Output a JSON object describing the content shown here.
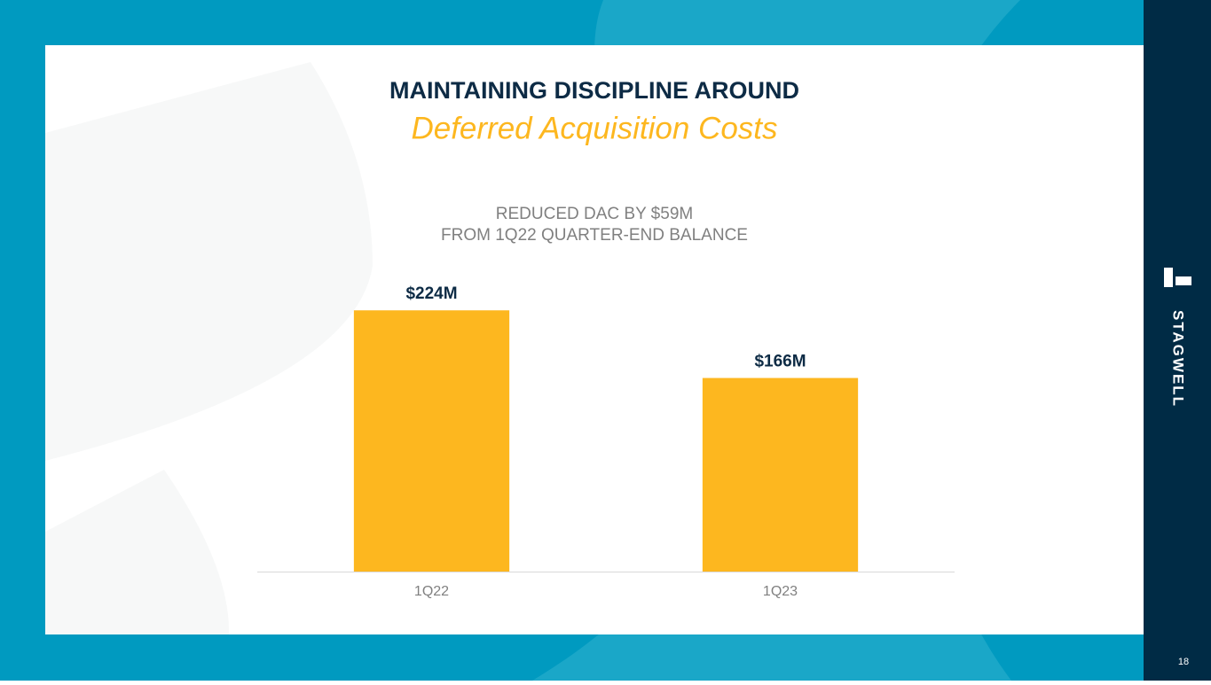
{
  "slide": {
    "heading": "MAINTAINING DISCIPLINE AROUND",
    "logo": "STAGWELL",
    "page_number": "18"
  },
  "chart_data": {
    "type": "bar",
    "title": "Deferred Acquisition  Costs",
    "subtitle": [
      "REDUCED DAC BY $59M",
      "FROM 1Q22 QUARTER-END BALANCE"
    ],
    "categories": [
      "1Q22",
      "1Q23"
    ],
    "values": [
      224,
      166
    ],
    "value_labels": [
      "$224M",
      "$166M"
    ],
    "color": "#fdb71f",
    "ylim": [
      0,
      250
    ]
  }
}
